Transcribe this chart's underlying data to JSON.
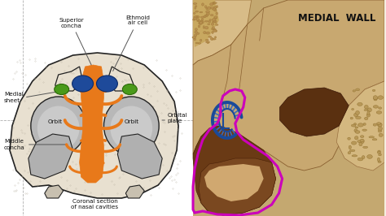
{
  "background_color": "#f5ede0",
  "medial_wall_text": "MEDIAL  WALL",
  "labels": {
    "superior_concha": "Superior\nconcha",
    "ethmoid_air_cell": "Ethmoid\nair cell",
    "orbit_left": "Orbit",
    "orbit_right": "Orbit",
    "medial_sheet": "Medial\nsheet",
    "orbital_plate": "Orbital\nplate",
    "middle_concha": "Middle\nconcha",
    "coronal_section": "Coronal section\nof nasal cavities"
  },
  "orange_color": "#e8791a",
  "blue_color": "#1a4a8a",
  "green_color": "#4a9a1a",
  "gray_light": "#c8c8c8",
  "gray_med": "#aaaaaa",
  "skull_color": "#e8e0d0",
  "skull_dot": "#d8d0c0",
  "outline_color": "#222222",
  "magenta_color": "#cc00bb",
  "annotation_color": "#111111",
  "right_bg": "#c8a87a",
  "bone_light": "#d4b87a",
  "bone_spongy": "#c8b090",
  "tissue_dark": "#5a3010",
  "tissue_mid": "#7a4820",
  "tissue_brown": "#8b5a30"
}
